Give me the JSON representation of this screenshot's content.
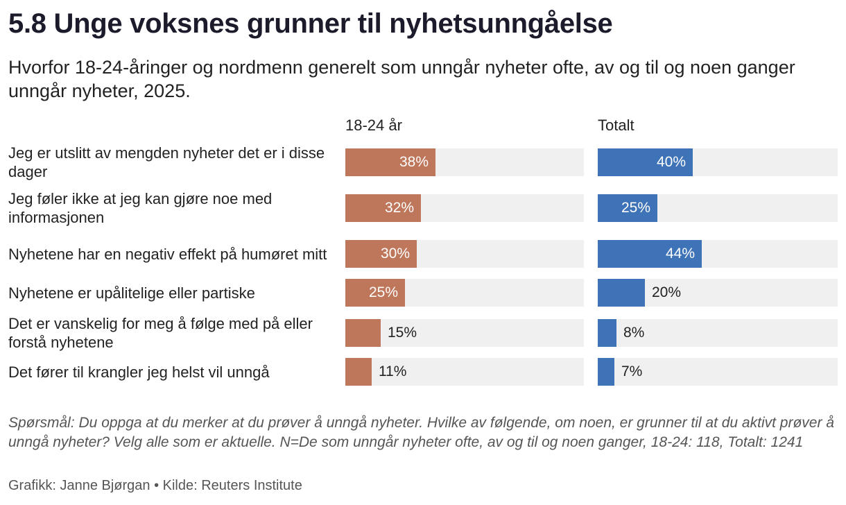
{
  "title": "5.8 Unge voksnes grunner til nyhetsunngåelse",
  "subtitle": "Hvorfor 18-24-åringer og nordmenn generelt som unngår nyheter ofte, av og til og noen ganger unngår nyheter, 2025.",
  "note": "Spørsmål: Du oppga at du merker at du prøver å unngå nyheter. Hvilke av følgende, om noen, er grunner til at du aktivt prøver å unngå nyheter? Velg alle som er aktuelle. N=De som unngår nyheter ofte, av og til og noen ganger, 18-24: 118, Totalt: 1241",
  "credit": "Grafikk: Janne Bjørgan • Kilde: Reuters Institute",
  "colors": {
    "young": "#bf775b",
    "total": "#3e73b7",
    "track": "#f0f0f0"
  },
  "chart_data": {
    "type": "bar",
    "orientation": "horizontal",
    "categories": [
      "Jeg er utslitt av mengden nyheter det er i disse dager",
      "Jeg føler ikke at jeg kan gjøre noe med informasjonen",
      "Nyhetene har en negativ effekt på humøret mitt",
      "Nyhetene er upålitelige eller partiske",
      "Det er vanskelig for meg å følge med på eller forstå nyhetene",
      "Det fører til krangler jeg helst vil unngå"
    ],
    "series": [
      {
        "name": "18-24 år",
        "values": [
          38,
          32,
          30,
          25,
          15,
          11
        ],
        "labels": [
          "38%",
          "32%",
          "30%",
          "25%",
          "15%",
          "11%"
        ]
      },
      {
        "name": "Totalt",
        "values": [
          40,
          25,
          44,
          20,
          8,
          7
        ],
        "labels": [
          "40%",
          "25%",
          "44%",
          "20%",
          "8%",
          "7%"
        ]
      }
    ],
    "xlim": [
      0,
      100
    ],
    "unit": "%"
  }
}
